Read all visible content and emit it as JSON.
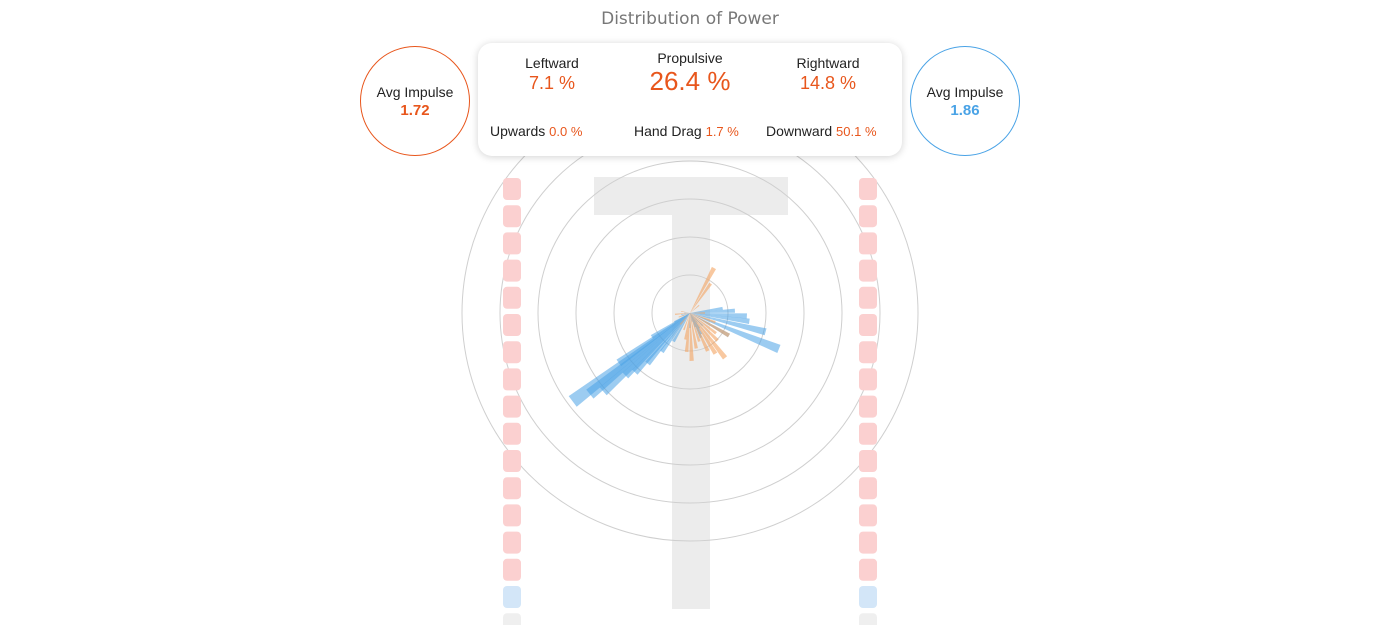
{
  "title": "Distribution of Power",
  "left_impulse": {
    "label": "Avg Impulse",
    "value": "1.72",
    "color": "#e8561c"
  },
  "right_impulse": {
    "label": "Avg Impulse",
    "value": "1.86",
    "color": "#4aa3e6"
  },
  "stats": {
    "leftward": {
      "label": "Leftward",
      "value": "7.1 %"
    },
    "propulsive": {
      "label": "Propulsive",
      "value": "26.4 %"
    },
    "rightward": {
      "label": "Rightward",
      "value": "14.8 %"
    },
    "upwards": {
      "label": "Upwards",
      "value": "0.0 %"
    },
    "hand_drag": {
      "label": "Hand Drag",
      "value": "1.7 %"
    },
    "downward": {
      "label": "Downward",
      "value": "50.1 %"
    }
  },
  "chart_data": {
    "type": "polar",
    "title": "Distribution of Power",
    "rings": 5,
    "series": [
      {
        "color": "#4aa3e6",
        "angles_deg": [
          -8,
          -3,
          3,
          8,
          14,
          22,
          30,
          45,
          52,
          58,
          62,
          66,
          70,
          76,
          90,
          120,
          126,
          130,
          133,
          136,
          138,
          141,
          143,
          145,
          148,
          150,
          160,
          170,
          180
        ],
        "magnitudes": [
          1.1,
          1.5,
          1.9,
          2.0,
          2.6,
          3.2,
          1.5,
          0.6,
          0.4,
          0.6,
          0.8,
          0.9,
          0.5,
          0.3,
          0.5,
          1.1,
          1.6,
          2.2,
          2.7,
          3.0,
          3.9,
          4.3,
          4.9,
          2.9,
          1.5,
          0.6,
          0.3,
          0.3,
          0.2
        ]
      },
      {
        "color": "#f4a460",
        "angles_deg": [
          -62,
          -55,
          -40,
          0,
          20,
          30,
          38,
          45,
          52,
          58,
          65,
          72,
          80,
          88,
          95,
          100,
          110,
          130,
          160,
          175,
          190
        ],
        "magnitudes": [
          1.7,
          1.2,
          0.4,
          0.5,
          0.9,
          1.5,
          1.1,
          1.3,
          1.9,
          1.6,
          1.4,
          1.0,
          1.2,
          1.6,
          1.3,
          0.9,
          0.6,
          0.5,
          0.4,
          0.5,
          0.3
        ]
      }
    ],
    "lane_markers": {
      "left": [
        "red",
        "red",
        "red",
        "red",
        "red",
        "red",
        "red",
        "red",
        "red",
        "red",
        "red",
        "red",
        "red",
        "red",
        "red",
        "blue",
        "gray"
      ],
      "right": [
        "red",
        "red",
        "red",
        "red",
        "red",
        "red",
        "red",
        "red",
        "red",
        "red",
        "red",
        "red",
        "red",
        "red",
        "red",
        "blue",
        "gray"
      ]
    },
    "marker_colors": {
      "red": "#fbd0d0",
      "blue": "#d3e6f8",
      "gray": "#efefef"
    }
  }
}
